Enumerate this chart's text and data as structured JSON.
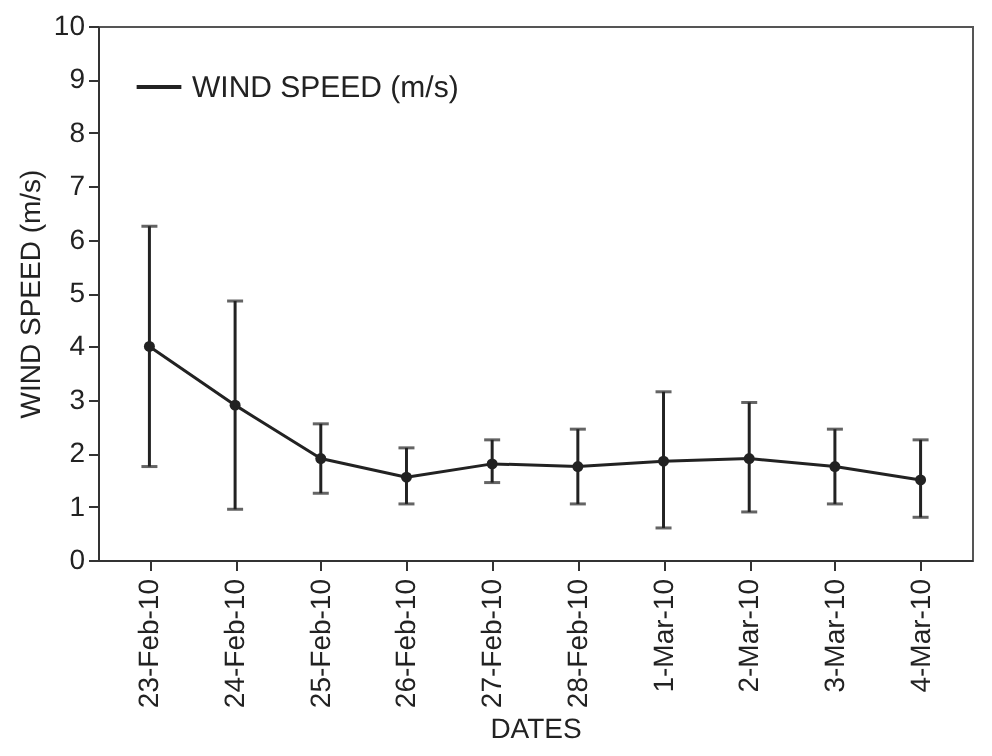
{
  "chart_data": {
    "type": "line",
    "xlabel": "DATES",
    "ylabel": "WIND SPEED (m/s)",
    "categories": [
      "23-Feb-10",
      "24-Feb-10",
      "25-Feb-10",
      "26-Feb-10",
      "27-Feb-10",
      "28-Feb-10",
      "1-Mar-10",
      "2-Mar-10",
      "3-Mar-10",
      "4-Mar-10"
    ],
    "series": [
      {
        "name": "WIND SPEED (m/s)",
        "color": "#222222",
        "values": [
          4.0,
          2.9,
          1.9,
          1.55,
          1.8,
          1.75,
          1.85,
          1.9,
          1.75,
          1.5
        ],
        "errors": [
          [
            1.75,
            6.25
          ],
          [
            0.95,
            4.85
          ],
          [
            1.25,
            2.55
          ],
          [
            1.05,
            2.1
          ],
          [
            1.45,
            2.25
          ],
          [
            1.05,
            2.45
          ],
          [
            0.6,
            3.15
          ],
          [
            0.9,
            2.95
          ],
          [
            1.05,
            2.45
          ],
          [
            0.8,
            2.25
          ]
        ]
      }
    ],
    "ylim": [
      0,
      10
    ],
    "yticks": [
      0,
      1,
      2,
      3,
      4,
      5,
      6,
      7,
      8,
      9,
      10
    ],
    "grid": false,
    "legend": "top left",
    "marker": "circle",
    "line_style": "solid"
  }
}
